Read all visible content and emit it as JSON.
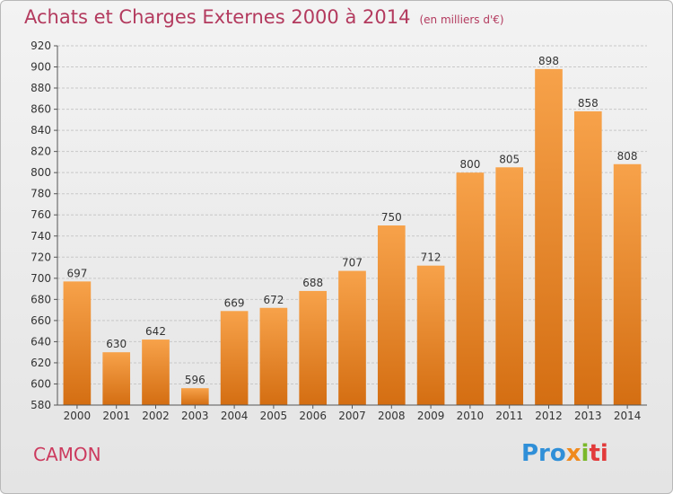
{
  "header": {
    "title": "Achats et Charges Externes 2000 à 2014",
    "unit": "(en milliers d'€)"
  },
  "footer": {
    "city": "CAMON",
    "brand_parts": [
      "Pro",
      "x",
      "i",
      "ti"
    ]
  },
  "colors": {
    "title": "#b33a5e",
    "bar_top": "#f7a24a",
    "bar_bottom": "#d46e12",
    "grid": "#c8c8c8"
  },
  "chart_data": {
    "type": "bar",
    "title": "Achats et Charges Externes 2000 à 2014",
    "subtitle": "(en milliers d'€)",
    "xlabel": "",
    "ylabel": "",
    "categories": [
      "2000",
      "2001",
      "2002",
      "2003",
      "2004",
      "2005",
      "2006",
      "2007",
      "2008",
      "2009",
      "2010",
      "2011",
      "2012",
      "2013",
      "2014"
    ],
    "values": [
      697,
      630,
      642,
      596,
      669,
      672,
      688,
      707,
      750,
      712,
      800,
      805,
      898,
      858,
      808
    ],
    "ylim": [
      580,
      920
    ],
    "ytick_step": 20,
    "grid": true,
    "legend": "none"
  }
}
